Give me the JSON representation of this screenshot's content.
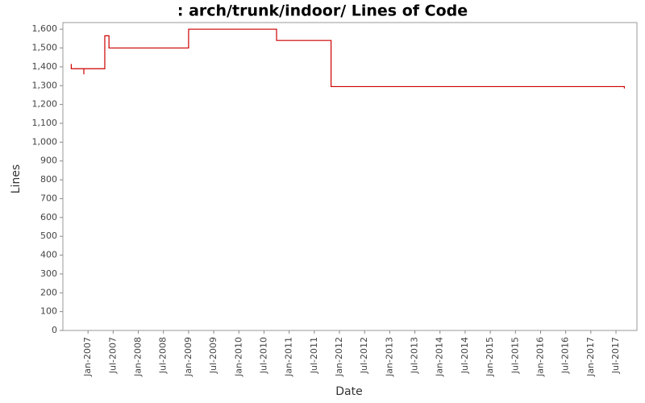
{
  "chart_data": {
    "type": "line",
    "title": ": arch/trunk/indoor/ Lines of Code",
    "x_label": "Date",
    "y_label": "Lines",
    "xlim": [
      "2006-07",
      "2017-12"
    ],
    "ylim": [
      0,
      1635
    ],
    "xticks": [
      {
        "value": "2007-01",
        "label": "Jan-2007"
      },
      {
        "value": "2007-07",
        "label": "Jul-2007"
      },
      {
        "value": "2008-01",
        "label": "Jan-2008"
      },
      {
        "value": "2008-07",
        "label": "Jul-2008"
      },
      {
        "value": "2009-01",
        "label": "Jan-2009"
      },
      {
        "value": "2009-07",
        "label": "Jul-2009"
      },
      {
        "value": "2010-01",
        "label": "Jan-2010"
      },
      {
        "value": "2010-07",
        "label": "Jul-2010"
      },
      {
        "value": "2011-01",
        "label": "Jan-2011"
      },
      {
        "value": "2011-07",
        "label": "Jul-2011"
      },
      {
        "value": "2012-01",
        "label": "Jan-2012"
      },
      {
        "value": "2012-07",
        "label": "Jul-2012"
      },
      {
        "value": "2013-01",
        "label": "Jan-2013"
      },
      {
        "value": "2013-07",
        "label": "Jul-2013"
      },
      {
        "value": "2014-01",
        "label": "Jan-2014"
      },
      {
        "value": "2014-07",
        "label": "Jul-2014"
      },
      {
        "value": "2015-01",
        "label": "Jan-2015"
      },
      {
        "value": "2015-07",
        "label": "Jul-2015"
      },
      {
        "value": "2016-01",
        "label": "Jan-2016"
      },
      {
        "value": "2016-07",
        "label": "Jul-2016"
      },
      {
        "value": "2017-01",
        "label": "Jan-2017"
      },
      {
        "value": "2017-07",
        "label": "Jul-2017"
      }
    ],
    "yticks": [
      0,
      100,
      200,
      300,
      400,
      500,
      600,
      700,
      800,
      900,
      {
        "value": 1000,
        "label": "1,000"
      },
      {
        "value": 1100,
        "label": "1,100"
      },
      {
        "value": 1200,
        "label": "1,200"
      },
      {
        "value": 1300,
        "label": "1,300"
      },
      {
        "value": 1400,
        "label": "1,400"
      },
      {
        "value": 1500,
        "label": "1,500"
      },
      {
        "value": 1600,
        "label": "1,600"
      }
    ],
    "color": "#cc0000",
    "x": [
      "2006-09",
      "2006-09",
      "2006-12",
      "2006-12",
      "2006-12",
      "2007-05",
      "2007-05",
      "2007-06",
      "2007-06",
      "2009-01",
      "2009-01",
      "2010-10",
      "2010-10",
      "2011-11",
      "2011-11",
      "2017-09",
      "2017-09"
    ],
    "values": [
      1415,
      1390,
      1390,
      1360,
      1390,
      1390,
      1565,
      1565,
      1500,
      1500,
      1600,
      1600,
      1540,
      1540,
      1295,
      1295,
      1285
    ]
  }
}
